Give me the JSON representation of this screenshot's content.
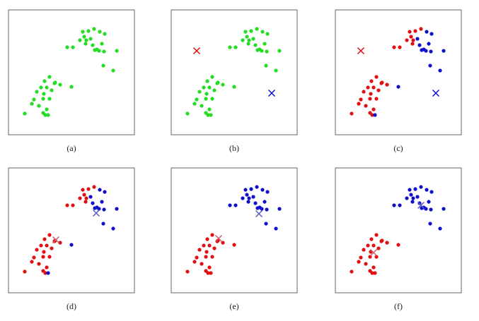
{
  "chart_data": [
    {
      "type": "scatter",
      "caption": "(a)",
      "xlim": [
        0,
        178
      ],
      "ylim": [
        0,
        177
      ],
      "series": [
        {
          "color": "#22dd22",
          "marker": "dot",
          "x": [
            105,
            113,
            121,
            129,
            107,
            110,
            116,
            101,
            91,
            83,
            119,
            125,
            128,
            135,
            122,
            132,
            136,
            153,
            134,
            148,
            109,
            58,
            51,
            65,
            73,
            89,
            54,
            46,
            40,
            50,
            61,
            58,
            49,
            36,
            33,
            43,
            54,
            49,
            52,
            56,
            23,
            66
          ],
          "y": [
            146,
            147,
            150,
            146,
            139,
            134,
            136,
            134,
            124,
            124,
            127,
            121,
            119,
            118,
            120,
            129,
            143,
            119,
            98,
            91,
            129,
            82,
            76,
            73,
            71,
            68,
            67,
            67,
            61,
            58,
            63,
            51,
            51,
            50,
            44,
            41,
            36,
            31,
            28,
            28,
            30,
            74
          ]
        }
      ]
    },
    {
      "type": "scatter",
      "caption": "(b)",
      "xlim": [
        0,
        178
      ],
      "ylim": [
        0,
        177
      ],
      "series": [
        {
          "color": "#22dd22",
          "marker": "dot",
          "x": [
            105,
            113,
            121,
            129,
            107,
            110,
            116,
            101,
            91,
            83,
            119,
            125,
            128,
            135,
            122,
            132,
            136,
            153,
            134,
            148,
            109,
            58,
            51,
            65,
            73,
            89,
            54,
            46,
            40,
            50,
            61,
            58,
            49,
            36,
            33,
            43,
            54,
            49,
            52,
            56,
            23,
            66
          ],
          "y": [
            146,
            147,
            150,
            146,
            139,
            134,
            136,
            134,
            124,
            124,
            127,
            121,
            119,
            118,
            120,
            129,
            143,
            119,
            98,
            91,
            129,
            82,
            76,
            73,
            71,
            68,
            67,
            67,
            61,
            58,
            63,
            51,
            51,
            50,
            44,
            41,
            36,
            31,
            28,
            28,
            30,
            74
          ]
        },
        {
          "color": "#e01010",
          "marker": "x",
          "x": [
            36
          ],
          "y": [
            119
          ]
        },
        {
          "color": "#1010cc",
          "marker": "x",
          "x": [
            142
          ],
          "y": [
            59
          ]
        }
      ]
    },
    {
      "type": "scatter",
      "caption": "(c)",
      "xlim": [
        0,
        178
      ],
      "ylim": [
        0,
        177
      ],
      "series": [
        {
          "color": "#e01010",
          "marker": "dot",
          "x": [
            105,
            113,
            121,
            107,
            110,
            101,
            91,
            83,
            109,
            58,
            51,
            65,
            73,
            54,
            46,
            40,
            50,
            61,
            58,
            49,
            36,
            33,
            43,
            54,
            49,
            52,
            23,
            66
          ],
          "y": [
            146,
            147,
            150,
            139,
            134,
            134,
            124,
            124,
            129,
            82,
            76,
            73,
            71,
            67,
            67,
            61,
            58,
            63,
            51,
            51,
            50,
            44,
            41,
            36,
            31,
            28,
            30,
            74
          ]
        },
        {
          "color": "#1010cc",
          "marker": "dot",
          "x": [
            129,
            116,
            119,
            125,
            128,
            135,
            122,
            132,
            136,
            153,
            134,
            148,
            89,
            56
          ],
          "y": [
            146,
            136,
            127,
            121,
            119,
            118,
            120,
            129,
            143,
            119,
            98,
            91,
            68,
            28
          ]
        },
        {
          "color": "#e01010",
          "marker": "x",
          "x": [
            36
          ],
          "y": [
            119
          ]
        },
        {
          "color": "#1010cc",
          "marker": "x",
          "x": [
            142
          ],
          "y": [
            59
          ]
        }
      ]
    },
    {
      "type": "scatter",
      "caption": "(d)",
      "xlim": [
        0,
        178
      ],
      "ylim": [
        0,
        177
      ],
      "series": [
        {
          "color": "#e01010",
          "marker": "dot",
          "x": [
            105,
            113,
            121,
            107,
            110,
            101,
            91,
            83,
            109,
            58,
            51,
            65,
            73,
            54,
            46,
            40,
            50,
            61,
            58,
            49,
            36,
            33,
            43,
            54,
            49,
            52,
            23,
            66
          ],
          "y": [
            146,
            147,
            150,
            139,
            134,
            134,
            124,
            124,
            129,
            82,
            76,
            73,
            71,
            67,
            67,
            61,
            58,
            63,
            51,
            51,
            50,
            44,
            41,
            36,
            31,
            28,
            30,
            74
          ]
        },
        {
          "color": "#1010cc",
          "marker": "dot",
          "x": [
            129,
            116,
            119,
            125,
            128,
            135,
            122,
            132,
            136,
            153,
            134,
            148,
            89,
            56
          ],
          "y": [
            146,
            136,
            127,
            121,
            119,
            118,
            120,
            129,
            143,
            119,
            98,
            91,
            68,
            28
          ]
        },
        {
          "color": "#d05a6a",
          "marker": "x",
          "x": [
            67
          ],
          "y": [
            75
          ]
        },
        {
          "color": "#5a5ac0",
          "marker": "x",
          "x": [
            124
          ],
          "y": [
            113
          ]
        }
      ]
    },
    {
      "type": "scatter",
      "caption": "(e)",
      "xlim": [
        0,
        178
      ],
      "ylim": [
        0,
        177
      ],
      "series": [
        {
          "color": "#1010cc",
          "marker": "dot",
          "x": [
            105,
            113,
            121,
            129,
            107,
            110,
            116,
            101,
            91,
            83,
            119,
            125,
            128,
            135,
            122,
            132,
            136,
            153,
            134,
            148,
            109
          ],
          "y": [
            146,
            147,
            150,
            146,
            139,
            134,
            136,
            134,
            124,
            124,
            127,
            121,
            119,
            118,
            120,
            129,
            143,
            119,
            98,
            91,
            129
          ]
        },
        {
          "color": "#e01010",
          "marker": "dot",
          "x": [
            58,
            51,
            65,
            73,
            89,
            54,
            46,
            40,
            50,
            61,
            58,
            49,
            36,
            33,
            43,
            54,
            49,
            52,
            56,
            23,
            66
          ],
          "y": [
            82,
            76,
            73,
            71,
            68,
            67,
            67,
            61,
            58,
            63,
            51,
            51,
            50,
            44,
            41,
            36,
            31,
            28,
            28,
            30,
            74
          ]
        },
        {
          "color": "#d05a6a",
          "marker": "x",
          "x": [
            67
          ],
          "y": [
            77
          ]
        },
        {
          "color": "#5a5ac0",
          "marker": "x",
          "x": [
            124
          ],
          "y": [
            112
          ]
        }
      ]
    },
    {
      "type": "scatter",
      "caption": "(f)",
      "xlim": [
        0,
        178
      ],
      "ylim": [
        0,
        177
      ],
      "series": [
        {
          "color": "#1010cc",
          "marker": "dot",
          "x": [
            105,
            113,
            121,
            129,
            107,
            110,
            116,
            101,
            91,
            83,
            119,
            125,
            128,
            135,
            122,
            132,
            136,
            153,
            134,
            148,
            109
          ],
          "y": [
            146,
            147,
            150,
            146,
            139,
            134,
            136,
            134,
            124,
            124,
            127,
            121,
            119,
            118,
            120,
            129,
            143,
            119,
            98,
            91,
            129
          ]
        },
        {
          "color": "#e01010",
          "marker": "dot",
          "x": [
            58,
            51,
            65,
            73,
            89,
            54,
            46,
            40,
            50,
            61,
            58,
            49,
            36,
            33,
            43,
            54,
            49,
            52,
            56,
            23,
            66
          ],
          "y": [
            82,
            76,
            73,
            71,
            68,
            67,
            67,
            61,
            58,
            63,
            51,
            51,
            50,
            44,
            41,
            36,
            31,
            28,
            28,
            30,
            74
          ]
        },
        {
          "color": "#d05a6a",
          "marker": "x",
          "x": [
            54
          ],
          "y": [
            57
          ]
        },
        {
          "color": "#5a5ac0",
          "marker": "x",
          "x": [
            121
          ],
          "y": [
            124
          ]
        }
      ]
    }
  ]
}
